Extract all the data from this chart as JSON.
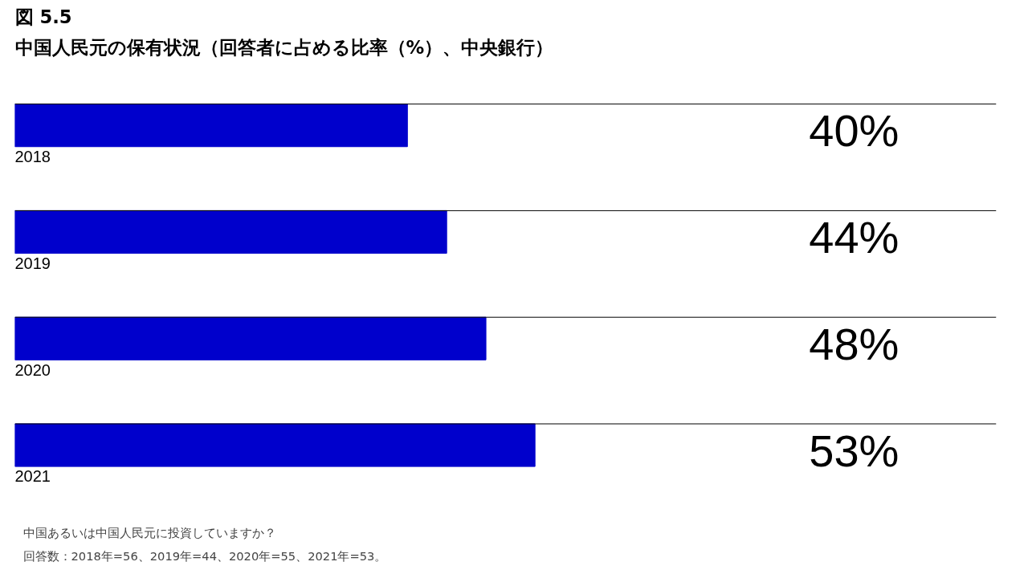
{
  "chart_data": {
    "type": "bar",
    "orientation": "horizontal",
    "title": "図 5.5",
    "subtitle": "中国人民元の保有状況（回答者に占める比率（%）、中央銀行）",
    "categories": [
      "2018",
      "2019",
      "2020",
      "2021"
    ],
    "values": [
      40,
      44,
      48,
      53
    ],
    "value_labels": [
      "40%",
      "44%",
      "48%",
      "53%"
    ],
    "color": "#0000cc",
    "xlim": [
      0,
      100
    ],
    "tick_labels": "y",
    "grid": "y",
    "annotations": [
      "中国あるいは中国人民元に投資していますか？",
      "回答数：2018年=56、2019年=44、2020年=55、2021年=53。"
    ]
  }
}
